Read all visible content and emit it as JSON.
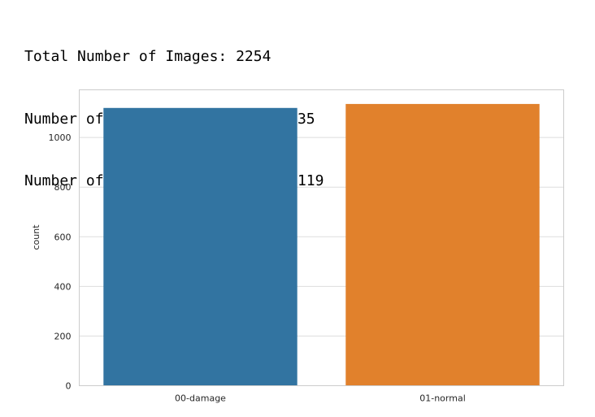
{
  "output_lines": [
    "Total Number of Images: 2254",
    "Number of Normal Car Images: 1135",
    "Number of Damaged Car Images: 1119"
  ],
  "chart_data": {
    "type": "bar",
    "categories": [
      "00-damage",
      "01-normal"
    ],
    "values": [
      1119,
      1135
    ],
    "colors": [
      "#3274a1",
      "#e1812c"
    ],
    "xlabel": "",
    "ylabel": "count",
    "ylim": [
      0,
      1192
    ],
    "yticks": [
      0,
      200,
      400,
      600,
      800,
      1000
    ],
    "grid": true
  }
}
